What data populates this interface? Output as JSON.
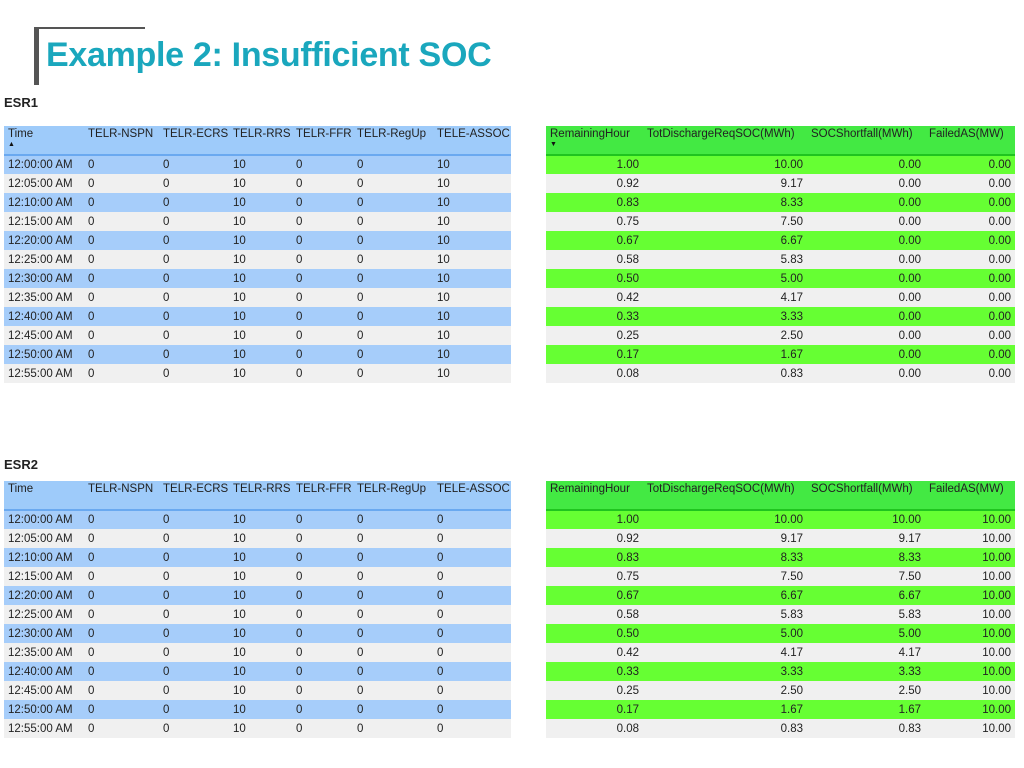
{
  "title": "Example 2: Insufficient SOC",
  "left_columns": [
    "Time",
    "TELR-NSPN",
    "TELR-ECRS",
    "TELR-RRS",
    "TELR-FFR",
    "TELR-RegUp",
    "TELE-ASSOC"
  ],
  "right_columns": [
    "RemainingHour",
    "TotDischargeReqSOC(MWh)",
    "SOCShortfall(MWh)",
    "FailedAS(MW)"
  ],
  "sections": [
    {
      "label": "ESR1",
      "left_rows": [
        [
          "12:00:00 AM",
          "0",
          "0",
          "10",
          "0",
          "0",
          "10"
        ],
        [
          "12:05:00 AM",
          "0",
          "0",
          "10",
          "0",
          "0",
          "10"
        ],
        [
          "12:10:00 AM",
          "0",
          "0",
          "10",
          "0",
          "0",
          "10"
        ],
        [
          "12:15:00 AM",
          "0",
          "0",
          "10",
          "0",
          "0",
          "10"
        ],
        [
          "12:20:00 AM",
          "0",
          "0",
          "10",
          "0",
          "0",
          "10"
        ],
        [
          "12:25:00 AM",
          "0",
          "0",
          "10",
          "0",
          "0",
          "10"
        ],
        [
          "12:30:00 AM",
          "0",
          "0",
          "10",
          "0",
          "0",
          "10"
        ],
        [
          "12:35:00 AM",
          "0",
          "0",
          "10",
          "0",
          "0",
          "10"
        ],
        [
          "12:40:00 AM",
          "0",
          "0",
          "10",
          "0",
          "0",
          "10"
        ],
        [
          "12:45:00 AM",
          "0",
          "0",
          "10",
          "0",
          "0",
          "10"
        ],
        [
          "12:50:00 AM",
          "0",
          "0",
          "10",
          "0",
          "0",
          "10"
        ],
        [
          "12:55:00 AM",
          "0",
          "0",
          "10",
          "0",
          "0",
          "10"
        ]
      ],
      "right_rows": [
        [
          "1.00",
          "10.00",
          "0.00",
          "0.00"
        ],
        [
          "0.92",
          "9.17",
          "0.00",
          "0.00"
        ],
        [
          "0.83",
          "8.33",
          "0.00",
          "0.00"
        ],
        [
          "0.75",
          "7.50",
          "0.00",
          "0.00"
        ],
        [
          "0.67",
          "6.67",
          "0.00",
          "0.00"
        ],
        [
          "0.58",
          "5.83",
          "0.00",
          "0.00"
        ],
        [
          "0.50",
          "5.00",
          "0.00",
          "0.00"
        ],
        [
          "0.42",
          "4.17",
          "0.00",
          "0.00"
        ],
        [
          "0.33",
          "3.33",
          "0.00",
          "0.00"
        ],
        [
          "0.25",
          "2.50",
          "0.00",
          "0.00"
        ],
        [
          "0.17",
          "1.67",
          "0.00",
          "0.00"
        ],
        [
          "0.08",
          "0.83",
          "0.00",
          "0.00"
        ]
      ],
      "left_sort": "ascending",
      "right_sort": "descending"
    },
    {
      "label": "ESR2",
      "left_rows": [
        [
          "12:00:00 AM",
          "0",
          "0",
          "10",
          "0",
          "0",
          "0"
        ],
        [
          "12:05:00 AM",
          "0",
          "0",
          "10",
          "0",
          "0",
          "0"
        ],
        [
          "12:10:00 AM",
          "0",
          "0",
          "10",
          "0",
          "0",
          "0"
        ],
        [
          "12:15:00 AM",
          "0",
          "0",
          "10",
          "0",
          "0",
          "0"
        ],
        [
          "12:20:00 AM",
          "0",
          "0",
          "10",
          "0",
          "0",
          "0"
        ],
        [
          "12:25:00 AM",
          "0",
          "0",
          "10",
          "0",
          "0",
          "0"
        ],
        [
          "12:30:00 AM",
          "0",
          "0",
          "10",
          "0",
          "0",
          "0"
        ],
        [
          "12:35:00 AM",
          "0",
          "0",
          "10",
          "0",
          "0",
          "0"
        ],
        [
          "12:40:00 AM",
          "0",
          "0",
          "10",
          "0",
          "0",
          "0"
        ],
        [
          "12:45:00 AM",
          "0",
          "0",
          "10",
          "0",
          "0",
          "0"
        ],
        [
          "12:50:00 AM",
          "0",
          "0",
          "10",
          "0",
          "0",
          "0"
        ],
        [
          "12:55:00 AM",
          "0",
          "0",
          "10",
          "0",
          "0",
          "0"
        ]
      ],
      "right_rows": [
        [
          "1.00",
          "10.00",
          "10.00",
          "10.00"
        ],
        [
          "0.92",
          "9.17",
          "9.17",
          "10.00"
        ],
        [
          "0.83",
          "8.33",
          "8.33",
          "10.00"
        ],
        [
          "0.75",
          "7.50",
          "7.50",
          "10.00"
        ],
        [
          "0.67",
          "6.67",
          "6.67",
          "10.00"
        ],
        [
          "0.58",
          "5.83",
          "5.83",
          "10.00"
        ],
        [
          "0.50",
          "5.00",
          "5.00",
          "10.00"
        ],
        [
          "0.42",
          "4.17",
          "4.17",
          "10.00"
        ],
        [
          "0.33",
          "3.33",
          "3.33",
          "10.00"
        ],
        [
          "0.25",
          "2.50",
          "2.50",
          "10.00"
        ],
        [
          "0.17",
          "1.67",
          "1.67",
          "10.00"
        ],
        [
          "0.08",
          "0.83",
          "0.83",
          "10.00"
        ]
      ],
      "left_sort": "none",
      "right_sort": "none"
    }
  ],
  "icons": {
    "sort_ascending": "sort-ascending-icon",
    "sort_descending": "sort-descending-icon"
  },
  "colors": {
    "title": "#1aa7bd",
    "left_header": "#9ecbfa",
    "left_band": "#a6cdfa",
    "right_header": "#43e943",
    "right_band": "#66ff33",
    "alt_row": "#f0f0f0"
  }
}
